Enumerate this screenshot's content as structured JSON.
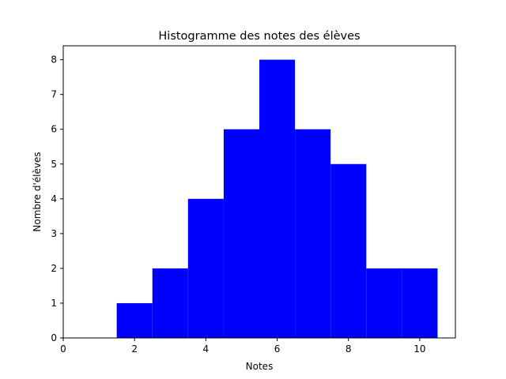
{
  "chart_data": {
    "type": "bar",
    "title": "Histogramme des notes des élèves",
    "xlabel": "Notes",
    "ylabel": "Nombre d'élèves",
    "bins": [
      {
        "x_start": 1.5,
        "x_end": 2.5,
        "count": 1
      },
      {
        "x_start": 2.5,
        "x_end": 3.5,
        "count": 2
      },
      {
        "x_start": 3.5,
        "x_end": 4.5,
        "count": 4
      },
      {
        "x_start": 4.5,
        "x_end": 5.5,
        "count": 6
      },
      {
        "x_start": 5.5,
        "x_end": 6.5,
        "count": 8
      },
      {
        "x_start": 6.5,
        "x_end": 7.5,
        "count": 6
      },
      {
        "x_start": 7.5,
        "x_end": 8.5,
        "count": 5
      },
      {
        "x_start": 8.5,
        "x_end": 9.5,
        "count": 2
      },
      {
        "x_start": 9.5,
        "x_end": 10.5,
        "count": 2
      }
    ],
    "xlim": [
      0,
      11
    ],
    "ylim": [
      0,
      8.4
    ],
    "xticks": [
      0,
      2,
      4,
      6,
      8,
      10
    ],
    "yticks": [
      0,
      1,
      2,
      3,
      4,
      5,
      6,
      7,
      8
    ],
    "bar_color": "#0000ff",
    "grid": false,
    "legend": null
  }
}
